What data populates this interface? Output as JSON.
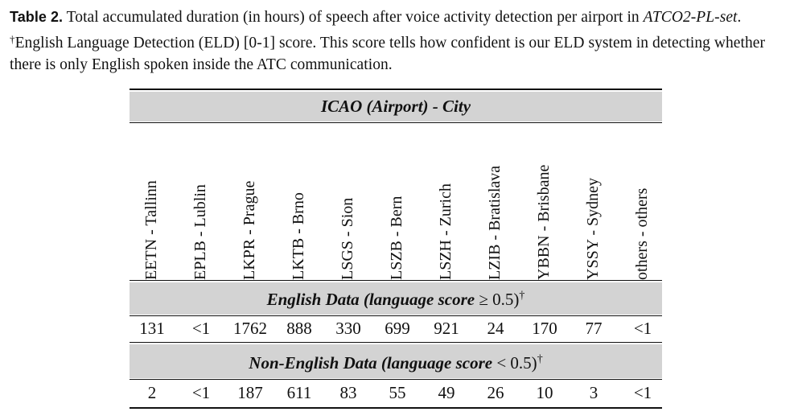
{
  "caption": {
    "label": "Table 2.",
    "text_1": " Total accumulated duration (in hours) of speech after voice activity detection per airport in ",
    "dataset_name": "ATCO2-PL-set",
    "text_2": ". ",
    "dagger": "†",
    "text_3": "English Language Detection (ELD) [0-1] score. This score tells how confident is our ELD system in detecting whether there is only English spoken inside the ATC communication."
  },
  "table": {
    "header_band": "ICAO (Airport) - City",
    "columns": [
      "EETN - Tallinn",
      "EPLB - Lublin",
      "LKPR - Prague",
      "LKTB - Brno",
      "LSGS - Sion",
      "LSZB - Bern",
      "LSZH - Zurich",
      "LZIB - Bratislava",
      "YBBN - Brisbane",
      "YSSY - Sydney",
      "others - others"
    ],
    "english_band": {
      "title_before": "English Data (language score ",
      "operator": "≥ 0.5)",
      "dagger": "†"
    },
    "english_values": [
      "131",
      "<1",
      "1762",
      "888",
      "330",
      "699",
      "921",
      "24",
      "170",
      "77",
      "<1"
    ],
    "non_english_band": {
      "title_before": "Non-English Data (language score ",
      "operator": "< 0.5)",
      "dagger": "†"
    },
    "non_english_values": [
      "2",
      "<1",
      "187",
      "611",
      "83",
      "55",
      "49",
      "26",
      "10",
      "3",
      "<1"
    ]
  }
}
